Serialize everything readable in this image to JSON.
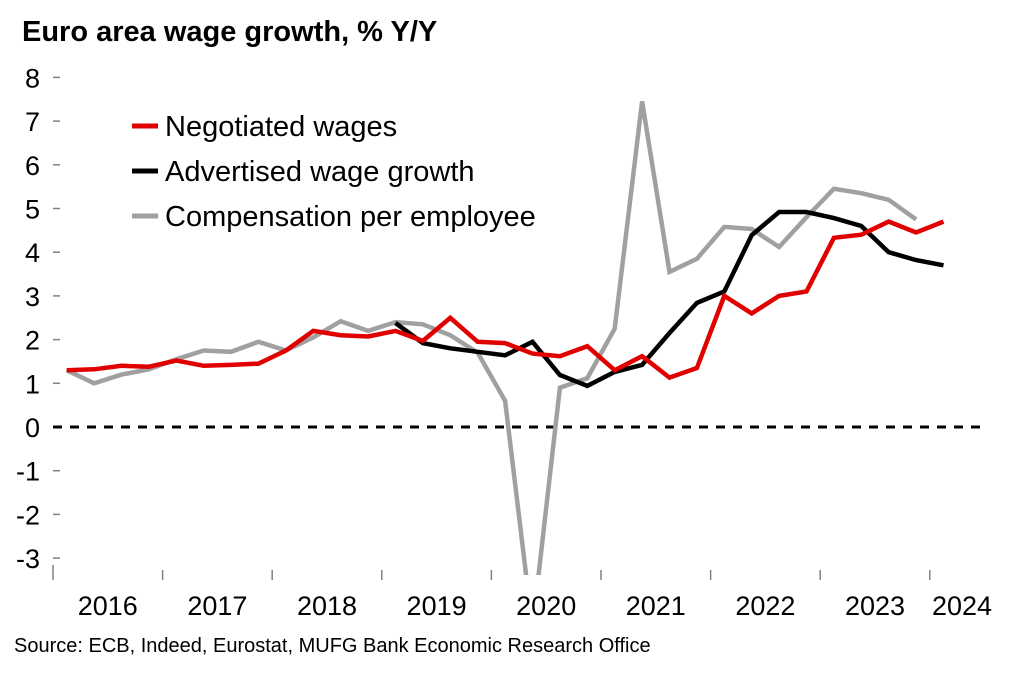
{
  "chart_data": {
    "type": "line",
    "title": "Euro area wage growth, % Y/Y",
    "source": "Source: ECB, Indeed, Eurostat, MUFG Bank Economic Research Office",
    "xlabel": "",
    "ylabel": "",
    "ylim": [
      -3.4,
      8.2
    ],
    "yticks": [
      "8",
      "7",
      "6",
      "5",
      "4",
      "3",
      "2",
      "1",
      "0",
      "-1",
      "-2",
      "-3"
    ],
    "ytick_values": [
      8,
      7,
      6,
      5,
      4,
      3,
      2,
      1,
      0,
      -1,
      -2,
      -3
    ],
    "xticks": [
      "2016",
      "2017",
      "2018",
      "2019",
      "2020",
      "2021",
      "2022",
      "2023",
      "2024"
    ],
    "x_start": "2016Q1",
    "frequency": "quarterly",
    "zero_line": "dashed",
    "legend_position": "top-left",
    "series": [
      {
        "name": "Negotiated wages",
        "color": "#e00000",
        "start_index": 0,
        "values": [
          1.3,
          1.32,
          1.4,
          1.38,
          1.52,
          1.4,
          1.42,
          1.45,
          1.75,
          2.2,
          2.1,
          2.07,
          2.2,
          1.97,
          2.5,
          1.95,
          1.92,
          1.68,
          1.62,
          1.85,
          1.3,
          1.62,
          1.13,
          1.35,
          3.0,
          2.6,
          3.0,
          3.1,
          4.33,
          4.4,
          4.7,
          4.45,
          4.7
        ]
      },
      {
        "name": "Advertised wage growth",
        "color": "#000000",
        "start_index": 12,
        "values": [
          2.38,
          1.92,
          1.8,
          1.72,
          1.64,
          1.95,
          1.19,
          0.94,
          1.26,
          1.42,
          2.15,
          2.84,
          3.1,
          4.39,
          4.92,
          4.92,
          4.78,
          4.6,
          4.0,
          3.82,
          3.7
        ]
      },
      {
        "name": "Compensation per employee",
        "color": "#a0a0a0",
        "start_index": 0,
        "values": [
          1.3,
          1.0,
          1.2,
          1.32,
          1.55,
          1.75,
          1.72,
          1.95,
          1.75,
          2.05,
          2.42,
          2.2,
          2.4,
          2.35,
          2.1,
          1.7,
          0.6,
          -4.6,
          0.9,
          1.12,
          2.25,
          7.45,
          3.55,
          3.85,
          4.58,
          4.53,
          4.12,
          4.8,
          5.45,
          5.35,
          5.2,
          4.75
        ]
      }
    ]
  }
}
